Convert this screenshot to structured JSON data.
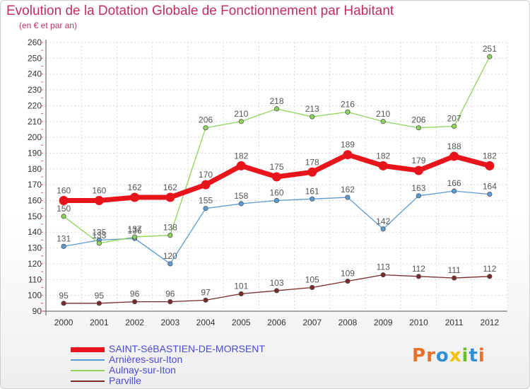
{
  "header": {
    "title": "Evolution de la Dotation Globale de Fonctionnement par Habitant",
    "subtitle": "(en € et par an)"
  },
  "brand": {
    "text": "Proxiti",
    "letter_colors": [
      "#e8702a",
      "#e8702a",
      "#2f8fd6",
      "#f2c200",
      "#6bbd2a",
      "#2f8fd6",
      "#e8702a"
    ]
  },
  "chart_data": {
    "type": "line",
    "title": "Evolution de la Dotation Globale de Fonctionnement par Habitant",
    "subtitle": "(en € et par an)",
    "xlabel": "",
    "ylabel": "",
    "x": [
      "2000",
      "2001",
      "2002",
      "2003",
      "2004",
      "2005",
      "2006",
      "2007",
      "2008",
      "2009",
      "2010",
      "2011",
      "2012"
    ],
    "ylim": [
      90,
      260
    ],
    "yticks": [
      90,
      100,
      110,
      120,
      130,
      140,
      150,
      160,
      170,
      180,
      190,
      200,
      210,
      220,
      230,
      240,
      250,
      260
    ],
    "grid": true,
    "legend_position": "bottom",
    "series": [
      {
        "name": "SAINT-SéBASTIEN-DE-MORSENT",
        "values": [
          160,
          160,
          162,
          162,
          170,
          182,
          175,
          178,
          189,
          182,
          179,
          188,
          182
        ],
        "color": "#e8141c",
        "emphasis": true
      },
      {
        "name": "Arnières-sur-Iton",
        "values": [
          131,
          135,
          136,
          120,
          155,
          158,
          160,
          161,
          162,
          142,
          163,
          166,
          164
        ],
        "color": "#5a9bd4",
        "emphasis": false
      },
      {
        "name": "Aulnay-sur-Iton",
        "values": [
          150,
          133,
          137,
          138,
          206,
          210,
          218,
          213,
          216,
          210,
          206,
          207,
          251
        ],
        "color": "#8ed45a",
        "emphasis": false
      },
      {
        "name": "Parville",
        "values": [
          95,
          95,
          96,
          96,
          97,
          101,
          103,
          105,
          109,
          113,
          112,
          111,
          112
        ],
        "color": "#7a2a2a",
        "emphasis": false
      }
    ]
  }
}
